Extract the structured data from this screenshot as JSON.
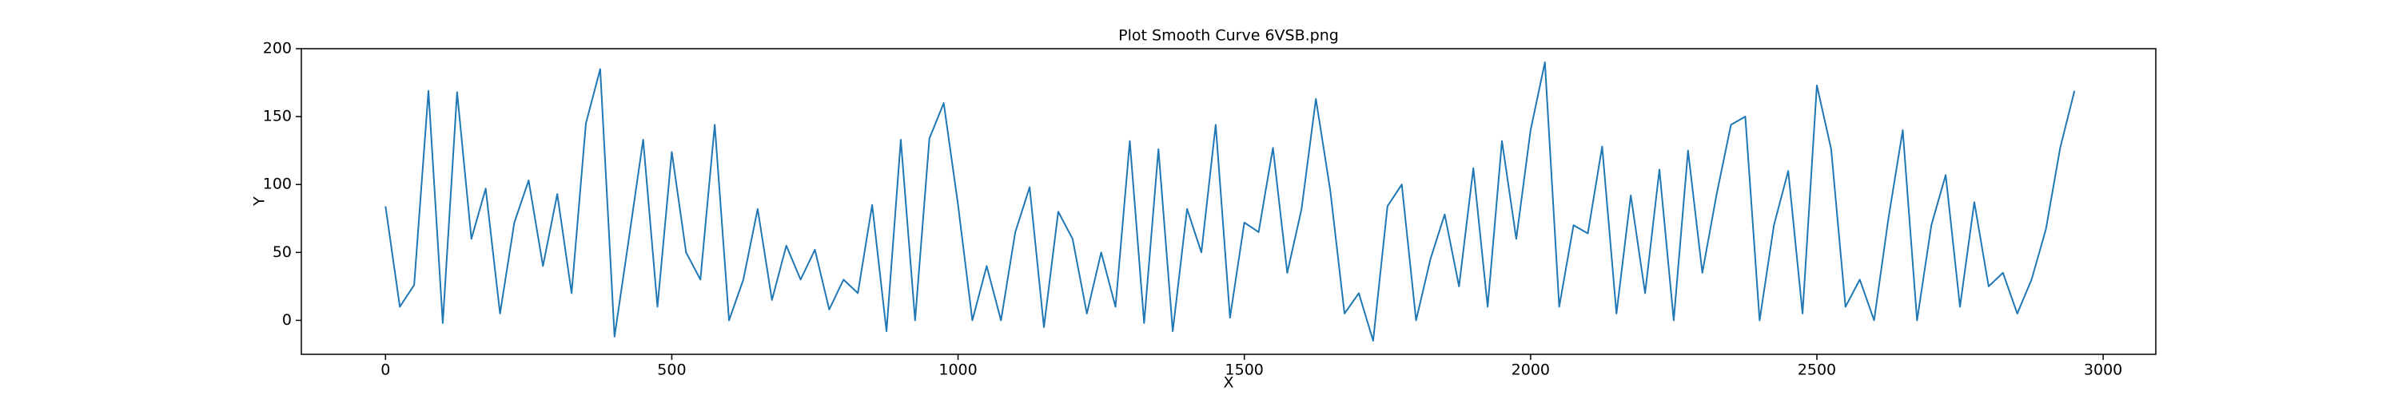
{
  "chart_data": {
    "type": "line",
    "title": "Plot Smooth Curve 6VSB.png",
    "xlabel": "X",
    "ylabel": "Y",
    "color": "#1f77b4",
    "xlim": [
      -147,
      3092
    ],
    "ylim": [
      -25,
      200
    ],
    "xticks": [
      0,
      500,
      1000,
      1500,
      2000,
      2500,
      3000
    ],
    "yticks": [
      0,
      50,
      100,
      150,
      200
    ],
    "x": [
      0,
      25,
      50,
      75,
      100,
      125,
      150,
      175,
      200,
      225,
      250,
      275,
      300,
      325,
      350,
      375,
      400,
      425,
      450,
      475,
      500,
      525,
      550,
      575,
      600,
      625,
      650,
      675,
      700,
      725,
      750,
      775,
      800,
      825,
      850,
      875,
      900,
      925,
      950,
      975,
      1000,
      1025,
      1050,
      1075,
      1100,
      1125,
      1150,
      1175,
      1200,
      1225,
      1250,
      1275,
      1300,
      1325,
      1350,
      1375,
      1400,
      1425,
      1450,
      1475,
      1500,
      1525,
      1550,
      1575,
      1600,
      1625,
      1650,
      1675,
      1700,
      1725,
      1750,
      1775,
      1800,
      1825,
      1850,
      1875,
      1900,
      1925,
      1950,
      1975,
      2000,
      2025,
      2050,
      2075,
      2100,
      2125,
      2150,
      2175,
      2200,
      2225,
      2250,
      2275,
      2300,
      2325,
      2350,
      2375,
      2400,
      2425,
      2450,
      2475,
      2500,
      2525,
      2550,
      2575,
      2600,
      2625,
      2650,
      2675,
      2700,
      2725,
      2750,
      2775,
      2800,
      2825,
      2850,
      2875,
      2900,
      2925,
      2950
    ],
    "values": [
      84,
      10,
      26,
      169,
      -2,
      168,
      60,
      97,
      5,
      72,
      103,
      40,
      93,
      20,
      145,
      185,
      -12,
      60,
      133,
      10,
      124,
      50,
      30,
      144,
      0,
      30,
      82,
      15,
      55,
      30,
      52,
      8,
      30,
      20,
      85,
      -8,
      133,
      0,
      134,
      160,
      85,
      0,
      40,
      0,
      65,
      98,
      -5,
      80,
      60,
      5,
      50,
      10,
      132,
      -2,
      126,
      -8,
      82,
      50,
      144,
      2,
      72,
      65,
      127,
      35,
      82,
      163,
      96,
      5,
      20,
      -15,
      84,
      100,
      0,
      45,
      78,
      25,
      112,
      10,
      132,
      60,
      140,
      190,
      10,
      70,
      64,
      128,
      5,
      92,
      20,
      111,
      0,
      125,
      35,
      93,
      144,
      150,
      0,
      70,
      110,
      5,
      173,
      126,
      10,
      30,
      0,
      75,
      140,
      0,
      70,
      107,
      10,
      87,
      25,
      35,
      5,
      30,
      67,
      127,
      169
    ]
  }
}
